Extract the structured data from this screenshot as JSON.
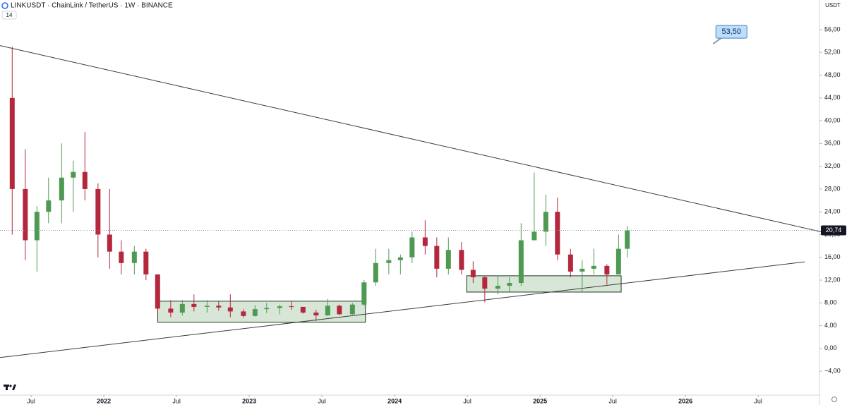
{
  "chart_data": {
    "type": "candlestick",
    "title": "LINKUSDT · ChainLink / TetherUS · 1W · BINANCE",
    "indicator": "14",
    "currency": "USDT",
    "xlim": [
      2021.286,
      2026.917
    ],
    "ylim": [
      -8.2,
      61.2
    ],
    "xticks": [
      {
        "value": 2021.5,
        "label": "Jul"
      },
      2022,
      {
        "value": 2022.5,
        "label": "Jul"
      },
      2023,
      {
        "value": 2023.5,
        "label": "Jul"
      },
      2024,
      {
        "value": 2024.5,
        "label": "Jul"
      },
      2025,
      {
        "value": 2025.5,
        "label": "Jul"
      },
      2026,
      {
        "value": 2026.5,
        "label": "Jul"
      }
    ],
    "yticks": [
      {
        "value": -4,
        "label": "−4,00"
      },
      {
        "value": 0,
        "label": "0,00"
      },
      {
        "value": 4,
        "label": "4,00"
      },
      {
        "value": 8,
        "label": "8,00"
      },
      {
        "value": 12,
        "label": "12,00"
      },
      {
        "value": 16,
        "label": "16,00"
      },
      {
        "value": 20,
        "label": "20,00"
      },
      {
        "value": 24,
        "label": "24,00"
      },
      {
        "value": 28,
        "label": "28,00"
      },
      {
        "value": 32,
        "label": "32,00"
      },
      {
        "value": 36,
        "label": "36,00"
      },
      {
        "value": 40,
        "label": "40,00"
      },
      {
        "value": 44,
        "label": "44,00"
      },
      {
        "value": 48,
        "label": "48,00"
      },
      {
        "value": 52,
        "label": "52,00"
      },
      {
        "value": 56,
        "label": "56,00"
      }
    ],
    "up_color": "#4f9a52",
    "down_color": "#b4283d",
    "x": [
      2021.37,
      2021.46,
      2021.54,
      2021.62,
      2021.71,
      2021.79,
      2021.87,
      2021.96,
      2022.04,
      2022.12,
      2022.21,
      2022.29,
      2022.37,
      2022.46,
      2022.54,
      2022.62,
      2022.71,
      2022.79,
      2022.87,
      2022.96,
      2023.04,
      2023.12,
      2023.21,
      2023.29,
      2023.37,
      2023.46,
      2023.54,
      2023.62,
      2023.71,
      2023.79,
      2023.87,
      2023.96,
      2024.04,
      2024.12,
      2024.21,
      2024.29,
      2024.37,
      2024.46,
      2024.54,
      2024.62,
      2024.71,
      2024.79,
      2024.87,
      2024.96,
      2025.04,
      2025.12,
      2025.21,
      2025.29,
      2025.37,
      2025.46,
      2025.54,
      2025.6
    ],
    "open": [
      44,
      28,
      19,
      24,
      26,
      30,
      31,
      28,
      20,
      17,
      15,
      17,
      13,
      7,
      6.3,
      7.8,
      7.3,
      7.5,
      7.2,
      6.5,
      5.7,
      6.9,
      7.1,
      7.4,
      7.3,
      6.3,
      5.8,
      7.5,
      6.0,
      7.7,
      11.6,
      15.0,
      15.5,
      16.0,
      19.5,
      18.0,
      14.0,
      17.3,
      13.8,
      12.5,
      10.5,
      11.0,
      11.5,
      19.0,
      20.5,
      24.0,
      16.5,
      13.5,
      14.0,
      14.5,
      13.0,
      17.5
    ],
    "high": [
      53,
      35,
      25,
      30,
      36,
      33,
      38,
      29,
      28,
      19,
      18,
      17.5,
      13,
      8.5,
      8.5,
      9.5,
      8.5,
      8.3,
      9.5,
      6.9,
      7.6,
      8.0,
      7.7,
      8.4,
      7.3,
      6.8,
      8.7,
      7.7,
      8.0,
      12.0,
      17.5,
      17.5,
      16.5,
      20.5,
      22.5,
      19.5,
      19.5,
      18.7,
      15.3,
      12.8,
      12.8,
      12.5,
      22.0,
      30.9,
      27.0,
      26.5,
      17.5,
      15.5,
      17.5,
      14.8,
      20.0,
      21.5
    ],
    "low": [
      20,
      15.5,
      13.5,
      22,
      22,
      24,
      26,
      16,
      14,
      13,
      13,
      12,
      6,
      5.5,
      5.8,
      6.5,
      6.3,
      6.6,
      5.5,
      5.4,
      5.6,
      6.2,
      6.0,
      6.8,
      6.1,
      4.8,
      5.7,
      5.9,
      5.9,
      7.4,
      11.0,
      13.0,
      13.0,
      15.0,
      16.5,
      12.5,
      13.0,
      13.0,
      11.5,
      8.1,
      9.5,
      10.0,
      11.0,
      19.0,
      18.0,
      15.5,
      12.5,
      10.0,
      13.0,
      11.2,
      13.0,
      16.0
    ],
    "close": [
      28,
      19,
      24,
      26,
      30,
      31,
      28,
      20,
      17,
      15,
      17,
      13,
      7,
      6.3,
      7.8,
      7.3,
      7.5,
      7.2,
      6.5,
      5.7,
      6.9,
      7.1,
      7.4,
      7.3,
      6.3,
      5.8,
      7.5,
      6.0,
      7.7,
      11.6,
      15.0,
      15.5,
      16.0,
      19.5,
      18.0,
      14.0,
      17.3,
      13.8,
      12.5,
      10.5,
      11.0,
      11.5,
      19.0,
      20.5,
      24.0,
      16.5,
      13.5,
      14.0,
      14.5,
      13.0,
      17.5,
      20.74
    ],
    "last_price": {
      "value": 20.74,
      "label": "20,74"
    },
    "callout": {
      "x": 2026.19,
      "value": 53.5,
      "label": "53,50"
    },
    "trendlines": [
      {
        "x": [
          2021.286,
          2026.966
        ],
        "y": [
          53.2,
          20.3
        ]
      },
      {
        "x": [
          2021.286,
          2026.82
        ],
        "y": [
          -1.6,
          15.2
        ]
      }
    ],
    "boxes": [
      {
        "x": [
          2022.371,
          2023.799
        ],
        "y": [
          4.6,
          8.3
        ]
      },
      {
        "x": [
          2024.495,
          2025.558
        ],
        "y": [
          9.9,
          12.76
        ]
      }
    ]
  }
}
